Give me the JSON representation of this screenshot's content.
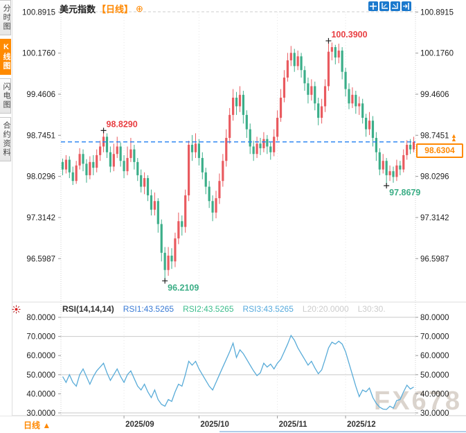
{
  "header": {
    "title": "美元指数",
    "period": "【日线】",
    "add_icon": "⊕",
    "toolbar": [
      {
        "name": "crosshair-icon"
      },
      {
        "name": "axis-left-icon"
      },
      {
        "name": "axis-right-icon"
      },
      {
        "name": "collapse-right-icon"
      }
    ]
  },
  "sidebar": {
    "tabs": [
      {
        "label": "分时图",
        "active": false
      },
      {
        "label": "K线图",
        "active": true
      },
      {
        "label": "闪电图",
        "active": false
      },
      {
        "label": "合约资料",
        "active": false
      }
    ]
  },
  "bottom_bar": {
    "period_label": "日线",
    "period_arrow": "▲"
  },
  "watermark": "FX678",
  "price_tag": {
    "value": "98.6304",
    "marker": "▲▲"
  },
  "colors": {
    "up": "#e95a5f",
    "down": "#3bae89",
    "accent_orange": "#ff8800",
    "dashed_line_blue": "#1e7ff2",
    "rsi_line": "#58abd8",
    "annotation_red": "#e83e42",
    "annotation_green": "#3aad85",
    "axis_text": "#222222",
    "grid": "#cccccc"
  },
  "chart_data": [
    {
      "type": "candlestick",
      "title": "美元指数【日线】",
      "ylim": [
        95.83,
        100.98
      ],
      "grid": "top-dashed-only",
      "legend_position": "none",
      "y_ticks": [
        {
          "label": "100.8915",
          "value": 100.8915
        },
        {
          "label": "100.1760",
          "value": 100.176
        },
        {
          "label": "99.4606",
          "value": 99.4606
        },
        {
          "label": "98.7451",
          "value": 98.7451
        },
        {
          "label": "98.0296",
          "value": 98.0296
        },
        {
          "label": "97.3142",
          "value": 97.3142
        },
        {
          "label": "96.5987",
          "value": 96.5987
        }
      ],
      "x_ticks": [
        {
          "label": "2025/09",
          "index": 18
        },
        {
          "label": "2025/10",
          "index": 40
        },
        {
          "label": "2025/11",
          "index": 63
        },
        {
          "label": "2025/12",
          "index": 83
        }
      ],
      "last_price": 98.6304,
      "annotations": [
        {
          "text": "98.8290",
          "value": 98.829,
          "index": 12,
          "kind": "high"
        },
        {
          "text": "100.3900",
          "value": 100.39,
          "index": 78,
          "kind": "high"
        },
        {
          "text": "96.2109",
          "value": 96.2109,
          "index": 30,
          "kind": "low"
        },
        {
          "text": "97.8679",
          "value": 97.8679,
          "index": 95,
          "kind": "low"
        }
      ],
      "ohlc": [
        [
          98.28,
          98.34,
          98.05,
          98.15
        ],
        [
          98.15,
          98.4,
          98.08,
          98.32
        ],
        [
          98.32,
          98.38,
          98.0,
          98.1
        ],
        [
          98.1,
          98.2,
          97.88,
          97.95
        ],
        [
          97.95,
          98.3,
          97.9,
          98.22
        ],
        [
          98.22,
          98.52,
          98.15,
          98.42
        ],
        [
          98.42,
          98.5,
          98.12,
          98.25
        ],
        [
          98.25,
          98.33,
          97.92,
          98.05
        ],
        [
          98.05,
          98.38,
          97.98,
          98.28
        ],
        [
          98.28,
          98.4,
          98.05,
          98.18
        ],
        [
          98.18,
          98.5,
          98.1,
          98.4
        ],
        [
          98.4,
          98.65,
          98.3,
          98.55
        ],
        [
          98.55,
          98.829,
          98.45,
          98.72
        ],
        [
          98.72,
          98.78,
          98.35,
          98.45
        ],
        [
          98.45,
          98.55,
          98.1,
          98.2
        ],
        [
          98.2,
          98.6,
          98.12,
          98.42
        ],
        [
          98.42,
          98.72,
          98.35,
          98.55
        ],
        [
          98.55,
          98.62,
          98.2,
          98.3
        ],
        [
          98.3,
          98.4,
          98.0,
          98.12
        ],
        [
          98.12,
          98.55,
          98.05,
          98.35
        ],
        [
          98.35,
          98.7,
          98.28,
          98.5
        ],
        [
          98.5,
          98.58,
          98.15,
          98.28
        ],
        [
          98.28,
          98.35,
          97.95,
          98.05
        ],
        [
          98.05,
          98.15,
          97.75,
          97.85
        ],
        [
          97.85,
          98.1,
          97.72,
          98.0
        ],
        [
          98.0,
          98.05,
          97.6,
          97.7
        ],
        [
          97.7,
          97.8,
          97.35,
          97.45
        ],
        [
          97.45,
          97.75,
          97.35,
          97.6
        ],
        [
          97.6,
          97.65,
          97.05,
          97.2
        ],
        [
          97.2,
          97.28,
          96.55,
          96.7
        ],
        [
          96.7,
          96.8,
          96.2109,
          96.4
        ],
        [
          96.4,
          96.8,
          96.3,
          96.65
        ],
        [
          96.65,
          96.78,
          96.42,
          96.55
        ],
        [
          96.55,
          97.05,
          96.45,
          96.95
        ],
        [
          96.95,
          97.4,
          96.85,
          97.25
        ],
        [
          97.25,
          97.35,
          97.0,
          97.15
        ],
        [
          97.15,
          97.8,
          97.05,
          97.7
        ],
        [
          97.7,
          98.65,
          97.6,
          98.58
        ],
        [
          98.58,
          98.75,
          98.3,
          98.45
        ],
        [
          98.45,
          98.78,
          98.35,
          98.6
        ],
        [
          98.6,
          98.68,
          98.22,
          98.35
        ],
        [
          98.35,
          98.45,
          97.98,
          98.1
        ],
        [
          98.1,
          98.18,
          97.72,
          97.85
        ],
        [
          97.85,
          97.95,
          97.48,
          97.6
        ],
        [
          97.6,
          97.7,
          97.25,
          97.4
        ],
        [
          97.4,
          97.78,
          97.3,
          97.65
        ],
        [
          97.65,
          98.08,
          97.55,
          97.95
        ],
        [
          97.95,
          98.42,
          97.85,
          98.3
        ],
        [
          98.3,
          98.85,
          98.2,
          98.7
        ],
        [
          98.7,
          99.22,
          98.6,
          99.1
        ],
        [
          99.1,
          99.55,
          99.0,
          99.4
        ],
        [
          99.4,
          99.5,
          99.1,
          99.25
        ],
        [
          99.25,
          99.6,
          99.15,
          99.45
        ],
        [
          99.45,
          99.52,
          98.95,
          99.1
        ],
        [
          99.1,
          99.18,
          98.7,
          98.85
        ],
        [
          98.85,
          98.95,
          98.42,
          98.55
        ],
        [
          98.55,
          98.65,
          98.3,
          98.42
        ],
        [
          98.42,
          98.72,
          98.35,
          98.6
        ],
        [
          98.6,
          98.7,
          98.4,
          98.52
        ],
        [
          98.52,
          98.8,
          98.45,
          98.68
        ],
        [
          98.68,
          98.75,
          98.42,
          98.55
        ],
        [
          98.55,
          98.62,
          98.32,
          98.45
        ],
        [
          98.45,
          98.85,
          98.38,
          98.72
        ],
        [
          98.72,
          99.18,
          98.65,
          99.05
        ],
        [
          99.05,
          99.55,
          98.98,
          99.4
        ],
        [
          99.4,
          99.88,
          99.32,
          99.75
        ],
        [
          99.75,
          100.18,
          99.68,
          100.05
        ],
        [
          100.05,
          100.3,
          99.95,
          100.18
        ],
        [
          100.18,
          100.25,
          99.85,
          99.95
        ],
        [
          99.95,
          100.22,
          99.88,
          100.12
        ],
        [
          100.12,
          100.18,
          99.75,
          99.88
        ],
        [
          99.88,
          99.95,
          99.52,
          99.65
        ],
        [
          99.65,
          99.75,
          99.3,
          99.45
        ],
        [
          99.45,
          99.72,
          99.35,
          99.6
        ],
        [
          99.6,
          99.68,
          99.18,
          99.3
        ],
        [
          99.3,
          99.4,
          98.92,
          99.05
        ],
        [
          99.05,
          99.38,
          98.95,
          99.25
        ],
        [
          99.25,
          99.72,
          99.15,
          99.6
        ],
        [
          99.6,
          100.39,
          99.52,
          100.2
        ],
        [
          100.2,
          100.36,
          100.05,
          100.28
        ],
        [
          100.28,
          100.32,
          99.98,
          100.1
        ],
        [
          100.1,
          100.34,
          100.0,
          100.22
        ],
        [
          100.22,
          100.28,
          99.72,
          99.85
        ],
        [
          99.85,
          99.92,
          99.42,
          99.55
        ],
        [
          99.55,
          99.65,
          99.2,
          99.3
        ],
        [
          99.3,
          99.58,
          99.22,
          99.45
        ],
        [
          99.45,
          99.52,
          99.12,
          99.25
        ],
        [
          99.25,
          99.42,
          99.1,
          99.3
        ],
        [
          99.3,
          99.38,
          98.95,
          99.05
        ],
        [
          99.05,
          99.12,
          98.72,
          98.85
        ],
        [
          98.85,
          99.15,
          98.75,
          99.0
        ],
        [
          99.0,
          99.08,
          98.55,
          98.7
        ],
        [
          98.7,
          98.8,
          98.3,
          98.45
        ],
        [
          98.45,
          98.52,
          98.05,
          98.15
        ],
        [
          98.15,
          98.42,
          98.08,
          98.3
        ],
        [
          98.3,
          98.35,
          97.8679,
          98.05
        ],
        [
          98.05,
          98.22,
          97.95,
          98.12
        ],
        [
          98.12,
          98.2,
          97.92,
          98.02
        ],
        [
          98.02,
          98.32,
          97.95,
          98.22
        ],
        [
          98.22,
          98.3,
          98.05,
          98.15
        ],
        [
          98.15,
          98.5,
          98.1,
          98.4
        ],
        [
          98.4,
          98.66,
          98.32,
          98.58
        ],
        [
          98.58,
          98.68,
          98.42,
          98.5
        ],
        [
          98.5,
          98.72,
          98.45,
          98.6304
        ]
      ]
    },
    {
      "type": "line",
      "name": "RSI",
      "ylim": [
        28.55,
        84
      ],
      "legend_position": "top-left",
      "legend": [
        {
          "text": "RSI(14,14,14)",
          "color": "#333333"
        },
        {
          "text": "RSI1:43.5265",
          "color": "#3a7bd5"
        },
        {
          "text": "RSI2:43.5265",
          "color": "#3dbd8d"
        },
        {
          "text": "RSI3:43.5265",
          "color": "#56aadd"
        },
        {
          "text": "L20:20.0000",
          "color": "#cccccc"
        },
        {
          "text": "L30:30.",
          "color": "#cccccc"
        }
      ],
      "y_ticks": [
        {
          "label": "80.0000",
          "value": 80
        },
        {
          "label": "70.0000",
          "value": 70
        },
        {
          "label": "60.0000",
          "value": 60
        },
        {
          "label": "50.0000",
          "value": 50
        },
        {
          "label": "40.0000",
          "value": 40
        },
        {
          "label": "30.0000",
          "value": 30
        }
      ],
      "gridline_values": [
        80,
        70,
        50,
        30
      ],
      "values": [
        49,
        46,
        50,
        46,
        44,
        50,
        53,
        49,
        45,
        49,
        52,
        54,
        56,
        51,
        47,
        50,
        53,
        49,
        46,
        50,
        52,
        48,
        44,
        42,
        45,
        41,
        38,
        42,
        37,
        34.5,
        33.5,
        37,
        36,
        41,
        45,
        44,
        50,
        57,
        55,
        57,
        53,
        50,
        47,
        44,
        42,
        46,
        50,
        54,
        58,
        62,
        66.5,
        59,
        63,
        61,
        58,
        55,
        52,
        49.5,
        51,
        56,
        54,
        55.5,
        53,
        56,
        58,
        62,
        66,
        70.5,
        68,
        64,
        61,
        58,
        55,
        57,
        53.5,
        50.5,
        52.5,
        58,
        64,
        67,
        66,
        67.5,
        66,
        62,
        56,
        50,
        44,
        38.5,
        42,
        41,
        43,
        38,
        35,
        33,
        32,
        31.8,
        33.5,
        32.5,
        36.5,
        37,
        41,
        44.5,
        42.5,
        43.5265
      ]
    }
  ]
}
